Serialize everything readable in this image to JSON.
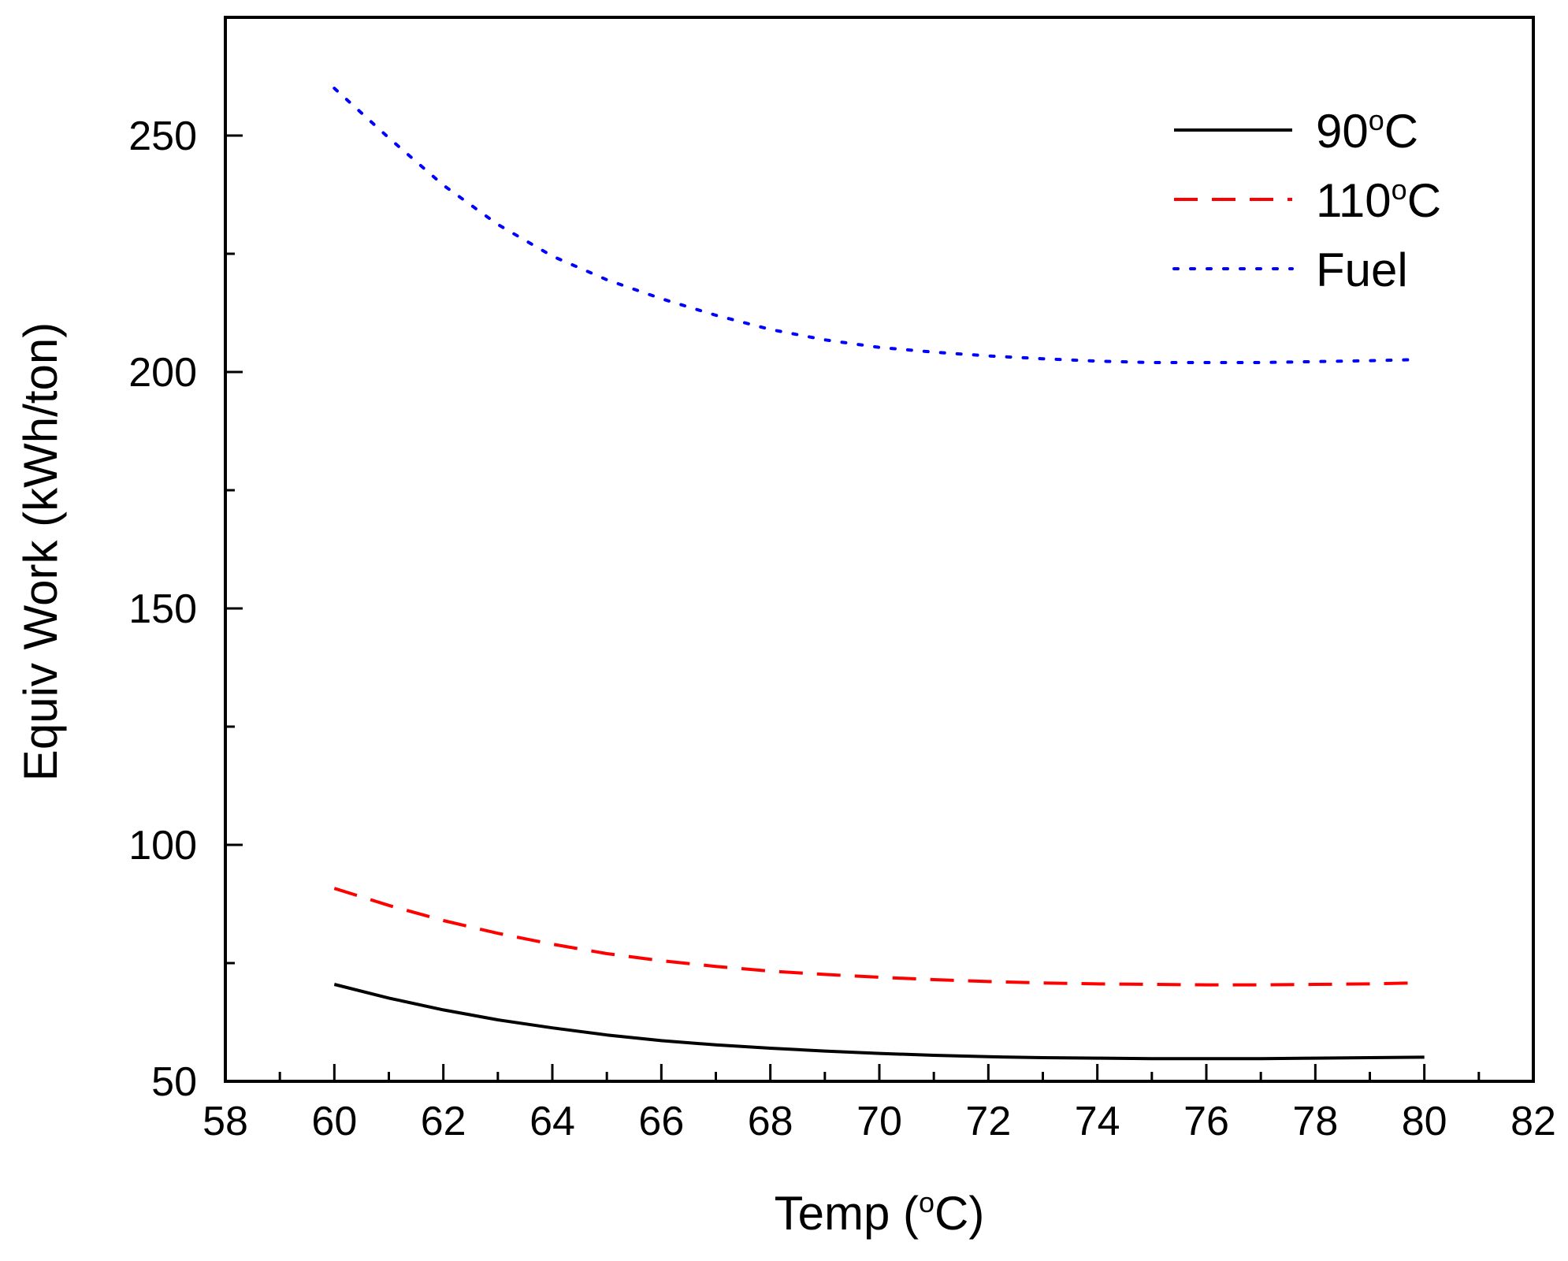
{
  "chart_data": {
    "type": "line",
    "title": "",
    "xlabel": "Temp (°C)",
    "ylabel": "Equiv Work (kWh/ton)",
    "xlim": [
      58,
      82
    ],
    "ylim": [
      50,
      275
    ],
    "x_major_ticks": [
      58,
      60,
      62,
      64,
      66,
      68,
      70,
      72,
      74,
      76,
      78,
      80,
      82
    ],
    "y_major_ticks": [
      50,
      100,
      150,
      200,
      250
    ],
    "x_tick_labels": [
      "58",
      "60",
      "62",
      "64",
      "66",
      "68",
      "70",
      "72",
      "74",
      "76",
      "78",
      "80",
      "82"
    ],
    "y_tick_labels": [
      "50",
      "100",
      "150",
      "200",
      "250"
    ],
    "legend_position": "top-right",
    "series": [
      {
        "name": "90°C",
        "style": "solid",
        "color": "#000000",
        "x": [
          60,
          61,
          62,
          63,
          64,
          65,
          66,
          67,
          68,
          69,
          70,
          71,
          72,
          73,
          74,
          75,
          76,
          77,
          78,
          79,
          80
        ],
        "y": [
          70.5,
          67.6,
          65.1,
          63.0,
          61.3,
          59.8,
          58.6,
          57.7,
          57.0,
          56.4,
          55.9,
          55.5,
          55.2,
          55.0,
          54.9,
          54.8,
          54.8,
          54.8,
          54.9,
          55.0,
          55.1
        ]
      },
      {
        "name": "110°C",
        "style": "dashed",
        "color": "#ff0000",
        "x": [
          60,
          61,
          62,
          63,
          64,
          65,
          66,
          67,
          68,
          69,
          70,
          71,
          72,
          73,
          74,
          75,
          76,
          77,
          78,
          79,
          79.8
        ],
        "y": [
          90.8,
          87.2,
          84.0,
          81.3,
          79.0,
          77.0,
          75.5,
          74.3,
          73.3,
          72.6,
          72.0,
          71.5,
          71.1,
          70.8,
          70.6,
          70.5,
          70.4,
          70.4,
          70.5,
          70.6,
          70.8
        ]
      },
      {
        "name": "Fuel",
        "style": "dotted",
        "color": "#0000ff",
        "x": [
          60,
          61,
          62,
          63,
          64,
          65,
          66,
          67,
          68,
          69,
          70,
          71,
          72,
          73,
          74,
          75,
          76,
          77,
          78,
          79,
          79.8
        ],
        "y": [
          260.0,
          249.5,
          239.5,
          231.2,
          224.5,
          219.5,
          215.5,
          212.0,
          209.0,
          206.8,
          205.2,
          204.2,
          203.4,
          202.8,
          202.3,
          202.0,
          202.0,
          202.0,
          202.2,
          202.4,
          202.6
        ]
      }
    ]
  }
}
